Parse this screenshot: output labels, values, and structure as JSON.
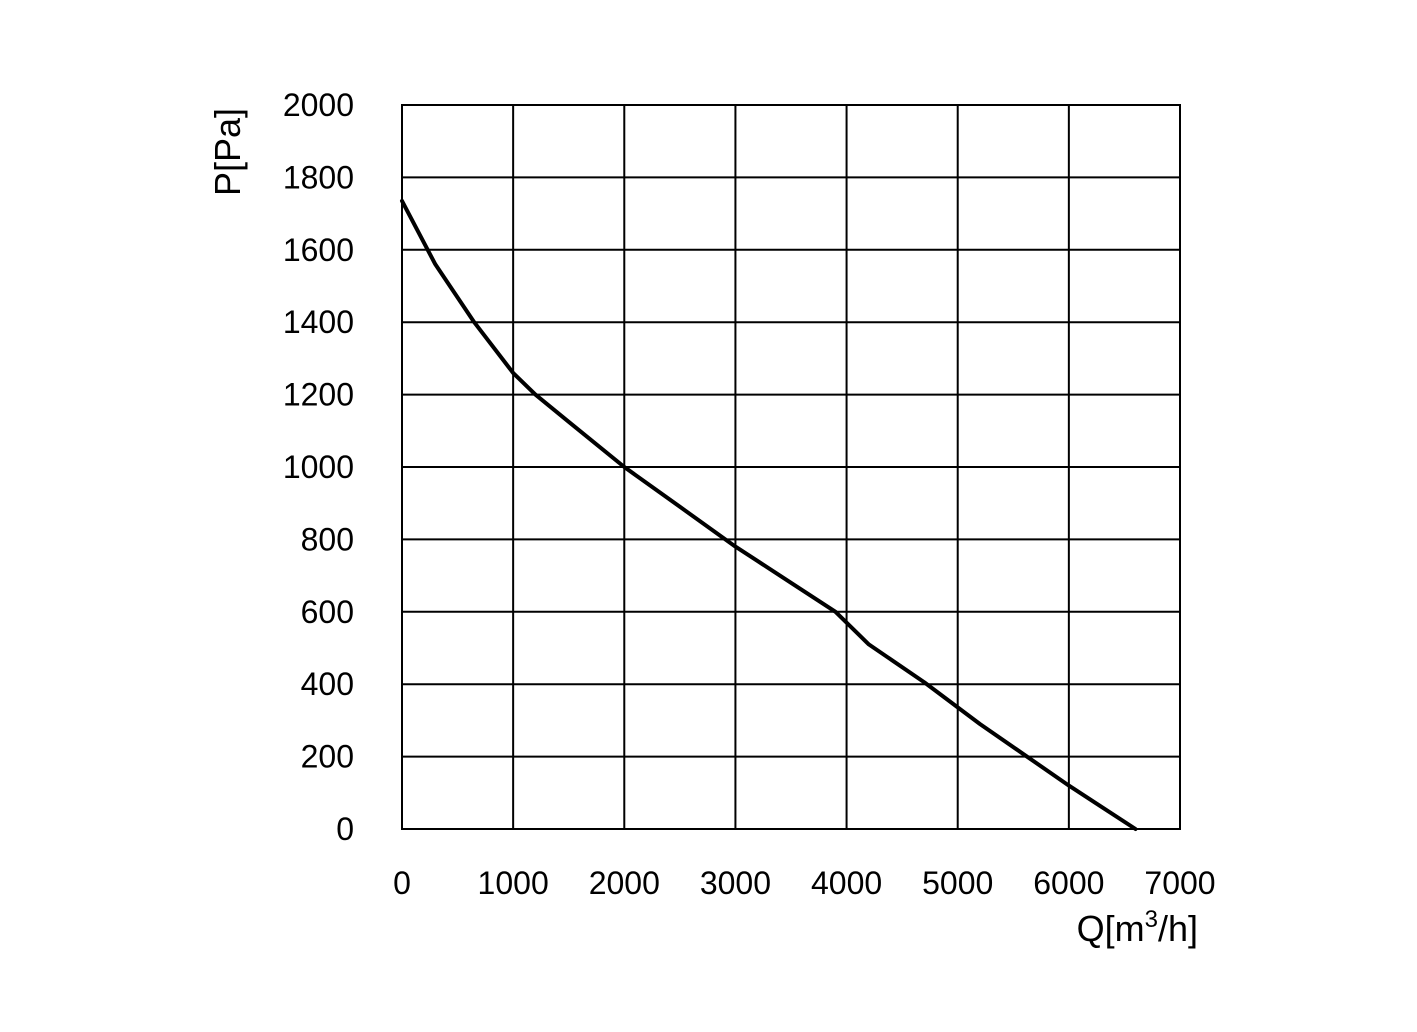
{
  "chart_data": {
    "type": "line",
    "title": "",
    "xlabel": "Q[m³/h]",
    "xlabel_parts": {
      "base": "Q[m",
      "sup": "3",
      "tail": "/h]"
    },
    "ylabel": "P[Pa]",
    "xlim": [
      0,
      7000
    ],
    "ylim": [
      0,
      2000
    ],
    "x_ticks": [
      0,
      1000,
      2000,
      3000,
      4000,
      5000,
      6000,
      7000
    ],
    "y_ticks": [
      0,
      200,
      400,
      600,
      800,
      1000,
      1200,
      1400,
      1600,
      1800,
      2000
    ],
    "x_tick_labels": [
      "0",
      "1000",
      "2000",
      "3000",
      "4000",
      "5000",
      "6000",
      "7000"
    ],
    "y_tick_labels": [
      "0",
      "200",
      "400",
      "600",
      "800",
      "1000",
      "1200",
      "1400",
      "1600",
      "1800",
      "2000"
    ],
    "grid": true,
    "line_color": "#000000",
    "series": [
      {
        "x": [
          0,
          300,
          650,
          1000,
          1200,
          1500,
          2000,
          2500,
          3000,
          3200,
          3500,
          3900,
          4200,
          4700,
          5200,
          5600,
          6000,
          6300,
          6600
        ],
        "y": [
          1735,
          1560,
          1400,
          1260,
          1200,
          1125,
          1000,
          890,
          780,
          740,
          680,
          600,
          510,
          405,
          290,
          205,
          120,
          60,
          0
        ]
      }
    ]
  }
}
